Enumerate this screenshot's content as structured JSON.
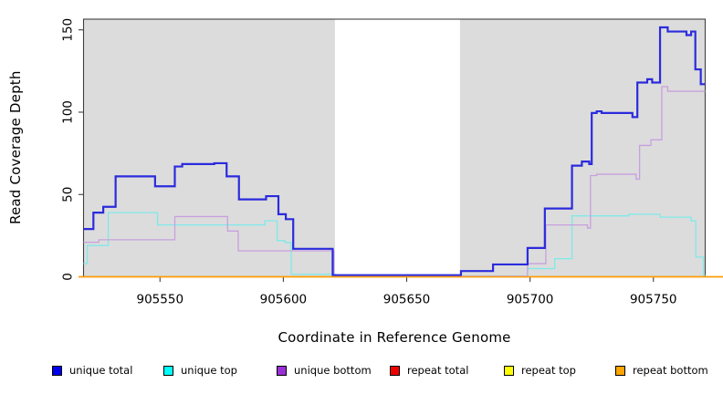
{
  "figure": {
    "y_axis_label": "Read Coverage Depth",
    "x_axis_label": "Coordinate in Reference Genome"
  },
  "chart_data": {
    "type": "line",
    "subtype": "step",
    "title": "",
    "xlabel": "Coordinate in Reference Genome",
    "ylabel": "Read Coverage Depth",
    "xlim": [
      905519,
      905771
    ],
    "ylim": [
      0,
      156.5
    ],
    "x_ticks": [
      905550,
      905600,
      905650,
      905700,
      905750
    ],
    "y_ticks": [
      0,
      50,
      100,
      150
    ],
    "grid": false,
    "legend_position": "bottom",
    "panel_band_color": "#dcdcdc",
    "frame_color": "#404040",
    "background_bands": [
      {
        "x0": 905519,
        "x1": 905620.9
      },
      {
        "x0": 905671.6,
        "x1": 905771
      }
    ],
    "series": [
      {
        "name": "repeat total",
        "color": "#ee0000",
        "legend_color": "#ee0000",
        "width": 1.2,
        "extend_full_width": true,
        "steps": [
          [
            905519,
            0
          ]
        ]
      },
      {
        "name": "repeat top",
        "color": "#ffff00",
        "legend_color": "#ffff00",
        "width": 1.2,
        "extend_full_width": true,
        "steps": [
          [
            905519,
            0
          ]
        ]
      },
      {
        "name": "unique top",
        "color": "#7fe9e9",
        "legend_color": "#00ffff",
        "width": 1.3,
        "extend_full_width": false,
        "steps": [
          [
            905519,
            8
          ],
          [
            905520.5,
            19
          ],
          [
            905529,
            39
          ],
          [
            905549,
            31.5
          ],
          [
            905592.5,
            34
          ],
          [
            905597.5,
            22
          ],
          [
            905600.7,
            20.8
          ],
          [
            905603.2,
            1.5
          ],
          [
            905621,
            0.6
          ],
          [
            905671.5,
            0.4
          ],
          [
            905699,
            5
          ],
          [
            905710,
            11
          ],
          [
            905717,
            37
          ],
          [
            905740,
            38
          ],
          [
            905752.7,
            36.2
          ],
          [
            905765.3,
            34
          ],
          [
            905767.2,
            12
          ],
          [
            905770.3,
            1
          ]
        ]
      },
      {
        "name": "unique bottom",
        "color": "#c7a0df",
        "legend_color": "#9b2fd6",
        "width": 1.3,
        "extend_full_width": false,
        "steps": [
          [
            905519,
            21
          ],
          [
            905525.2,
            22.5
          ],
          [
            905556,
            36.6
          ],
          [
            905577.4,
            27.8
          ],
          [
            905581.7,
            15.8
          ],
          [
            905620.5,
            0.5
          ],
          [
            905671.5,
            0.3
          ],
          [
            905699,
            8
          ],
          [
            905706.4,
            31.5
          ],
          [
            905723.3,
            29.6
          ],
          [
            905724.5,
            61.5
          ],
          [
            905727,
            62.3
          ],
          [
            905743,
            59.3
          ],
          [
            905744.4,
            79.8
          ],
          [
            905749,
            83.2
          ],
          [
            905753.4,
            115.5
          ],
          [
            905755.8,
            112.7
          ]
        ]
      },
      {
        "name": "unique total",
        "color": "#2b2bdd",
        "legend_color": "#0000ee",
        "width": 2.2,
        "extend_full_width": false,
        "steps": [
          [
            905519,
            29
          ],
          [
            905523,
            39
          ],
          [
            905527,
            42.5
          ],
          [
            905532,
            61
          ],
          [
            905548,
            55
          ],
          [
            905556,
            67
          ],
          [
            905559,
            68.5
          ],
          [
            905572,
            69
          ],
          [
            905577,
            61
          ],
          [
            905582,
            47
          ],
          [
            905593,
            49
          ],
          [
            905598,
            38
          ],
          [
            905601,
            35
          ],
          [
            905604,
            17
          ],
          [
            905620,
            1
          ],
          [
            905672,
            3.5
          ],
          [
            905685,
            7.5
          ],
          [
            905699,
            17.5
          ],
          [
            905706,
            41.5
          ],
          [
            905717,
            67.5
          ],
          [
            905721,
            70
          ],
          [
            905724,
            68.5
          ],
          [
            905725,
            99.5
          ],
          [
            905727,
            100.5
          ],
          [
            905729,
            99.5
          ],
          [
            905741.5,
            97
          ],
          [
            905743.5,
            118
          ],
          [
            905747.5,
            120
          ],
          [
            905749.5,
            118
          ],
          [
            905752.7,
            151.5
          ],
          [
            905755.8,
            149
          ],
          [
            905763.4,
            146.8
          ],
          [
            905765.3,
            149
          ],
          [
            905767,
            126
          ],
          [
            905769.2,
            117
          ]
        ]
      },
      {
        "name": "repeat bottom",
        "color": "#ff9e05",
        "legend_color": "#ffa500",
        "width": 1.6,
        "extend_full_width": true,
        "steps": [
          [
            905519,
            0
          ]
        ]
      }
    ]
  },
  "legend": {
    "items": [
      {
        "label": "unique total",
        "color": "#0000ee"
      },
      {
        "label": "unique top",
        "color": "#00ffff"
      },
      {
        "label": "unique bottom",
        "color": "#9b2fd6"
      },
      {
        "label": "repeat total",
        "color": "#ee0000"
      },
      {
        "label": "repeat top",
        "color": "#ffff00"
      },
      {
        "label": "repeat bottom",
        "color": "#ffa500"
      }
    ]
  }
}
